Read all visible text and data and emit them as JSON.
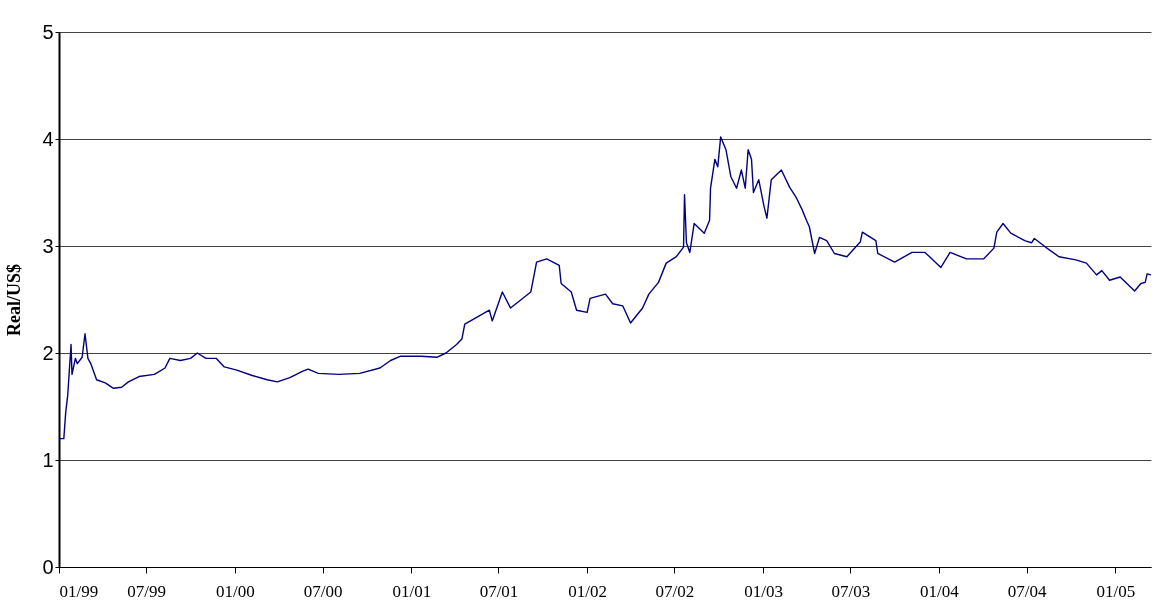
{
  "chart_data": {
    "type": "line",
    "ylabel": "Real/US$",
    "grid": "y",
    "legend": false,
    "marker": "none",
    "line_style": "solid",
    "xlim": [
      "1999-01-01",
      "2005-03-16"
    ],
    "xticks": [
      {
        "value": "1999-01-01",
        "label": "01/99"
      },
      {
        "value": "1999-07-01",
        "label": "07/99"
      },
      {
        "value": "2000-01-01",
        "label": "01/00"
      },
      {
        "value": "2000-07-01",
        "label": "07/00"
      },
      {
        "value": "2001-01-01",
        "label": "01/01"
      },
      {
        "value": "2001-07-01",
        "label": "07/01"
      },
      {
        "value": "2002-01-01",
        "label": "01/02"
      },
      {
        "value": "2002-07-01",
        "label": "07/02"
      },
      {
        "value": "2003-01-01",
        "label": "01/03"
      },
      {
        "value": "2003-07-01",
        "label": "07/03"
      },
      {
        "value": "2004-01-01",
        "label": "01/04"
      },
      {
        "value": "2004-07-01",
        "label": "07/04"
      },
      {
        "value": "2005-01-01",
        "label": "01/05"
      }
    ],
    "ylim": [
      0,
      5
    ],
    "yticks": [
      0,
      1,
      2,
      3,
      4,
      5
    ],
    "x": [
      "1999-01-01",
      "1999-01-11",
      "1999-01-15",
      "1999-01-19",
      "1999-01-26",
      "1999-01-28",
      "1999-02-04",
      "1999-02-08",
      "1999-02-18",
      "1999-02-24",
      "1999-03-02",
      "1999-03-08",
      "1999-03-20",
      "1999-04-07",
      "1999-04-24",
      "1999-05-11",
      "1999-05-25",
      "1999-06-16",
      "1999-07-18",
      "1999-08-09",
      "1999-08-19",
      "1999-09-10",
      "1999-10-01",
      "1999-10-15",
      "1999-11-02",
      "1999-11-23",
      "1999-12-10",
      "2000-01-05",
      "2000-02-06",
      "2000-03-08",
      "2000-03-29",
      "2000-04-24",
      "2000-05-21",
      "2000-06-01",
      "2000-06-22",
      "2000-08-04",
      "2000-09-16",
      "2000-10-28",
      "2000-11-19",
      "2000-12-10",
      "2001-01-22",
      "2001-02-23",
      "2001-03-14",
      "2001-04-05",
      "2001-04-16",
      "2001-04-22",
      "2001-06-12",
      "2001-06-18",
      "2001-07-09",
      "2001-07-26",
      "2001-09-06",
      "2001-09-18",
      "2001-10-09",
      "2001-11-04",
      "2001-11-08",
      "2001-11-29",
      "2001-12-10",
      "2002-01-01",
      "2002-01-07",
      "2002-02-08",
      "2002-02-23",
      "2002-03-16",
      "2002-04-01",
      "2002-04-26",
      "2002-05-09",
      "2002-05-29",
      "2002-06-14",
      "2002-07-05",
      "2002-07-20",
      "2002-07-22",
      "2002-07-26",
      "2002-08-02",
      "2002-08-11",
      "2002-09-01",
      "2002-09-12",
      "2002-09-14",
      "2002-09-23",
      "2002-09-29",
      "2002-10-05",
      "2002-10-16",
      "2002-10-26",
      "2002-11-07",
      "2002-11-17",
      "2002-11-25",
      "2002-12-01",
      "2002-12-08",
      "2002-12-12",
      "2002-12-23",
      "2003-01-03",
      "2003-01-09",
      "2003-01-18",
      "2003-02-08",
      "2003-02-25",
      "2003-03-10",
      "2003-03-23",
      "2003-04-01",
      "2003-04-07",
      "2003-04-18",
      "2003-04-28",
      "2003-05-13",
      "2003-05-29",
      "2003-06-24",
      "2003-07-22",
      "2003-07-26",
      "2003-08-23",
      "2003-08-27",
      "2003-10-01",
      "2003-11-06",
      "2003-12-03",
      "2004-01-05",
      "2004-01-24",
      "2004-02-27",
      "2004-04-03",
      "2004-04-24",
      "2004-04-30",
      "2004-05-13",
      "2004-05-29",
      "2004-06-27",
      "2004-07-11",
      "2004-07-17",
      "2004-08-09",
      "2004-09-06",
      "2004-10-11",
      "2004-11-02",
      "2004-11-23",
      "2004-12-04",
      "2004-12-20",
      "2005-01-11",
      "2005-02-10",
      "2005-02-23",
      "2005-03-04",
      "2005-03-08",
      "2005-03-16"
    ],
    "series": [
      {
        "color": "#000080",
        "values": [
          1.2,
          1.2,
          1.45,
          1.6,
          2.08,
          1.8,
          1.95,
          1.9,
          1.96,
          2.18,
          1.95,
          1.9,
          1.75,
          1.72,
          1.67,
          1.68,
          1.73,
          1.78,
          1.8,
          1.86,
          1.95,
          1.93,
          1.95,
          2.0,
          1.95,
          1.95,
          1.87,
          1.84,
          1.79,
          1.75,
          1.73,
          1.77,
          1.83,
          1.85,
          1.81,
          1.8,
          1.81,
          1.86,
          1.93,
          1.97,
          1.97,
          1.96,
          2.0,
          2.08,
          2.13,
          2.27,
          2.4,
          2.3,
          2.57,
          2.42,
          2.57,
          2.85,
          2.88,
          2.82,
          2.65,
          2.57,
          2.4,
          2.38,
          2.51,
          2.55,
          2.46,
          2.44,
          2.28,
          2.42,
          2.55,
          2.66,
          2.84,
          2.9,
          2.99,
          3.48,
          3.03,
          2.94,
          3.21,
          3.12,
          3.24,
          3.54,
          3.81,
          3.74,
          4.02,
          3.9,
          3.65,
          3.54,
          3.71,
          3.54,
          3.9,
          3.81,
          3.5,
          3.62,
          3.37,
          3.26,
          3.62,
          3.71,
          3.55,
          3.46,
          3.34,
          3.24,
          3.18,
          2.93,
          3.08,
          3.05,
          2.93,
          2.9,
          3.04,
          3.13,
          3.05,
          2.93,
          2.85,
          2.94,
          2.94,
          2.8,
          2.94,
          2.88,
          2.88,
          2.98,
          3.13,
          3.21,
          3.12,
          3.05,
          3.03,
          3.07,
          2.99,
          2.9,
          2.87,
          2.84,
          2.73,
          2.77,
          2.68,
          2.71,
          2.58,
          2.65,
          2.66,
          2.74,
          2.73
        ]
      }
    ]
  }
}
